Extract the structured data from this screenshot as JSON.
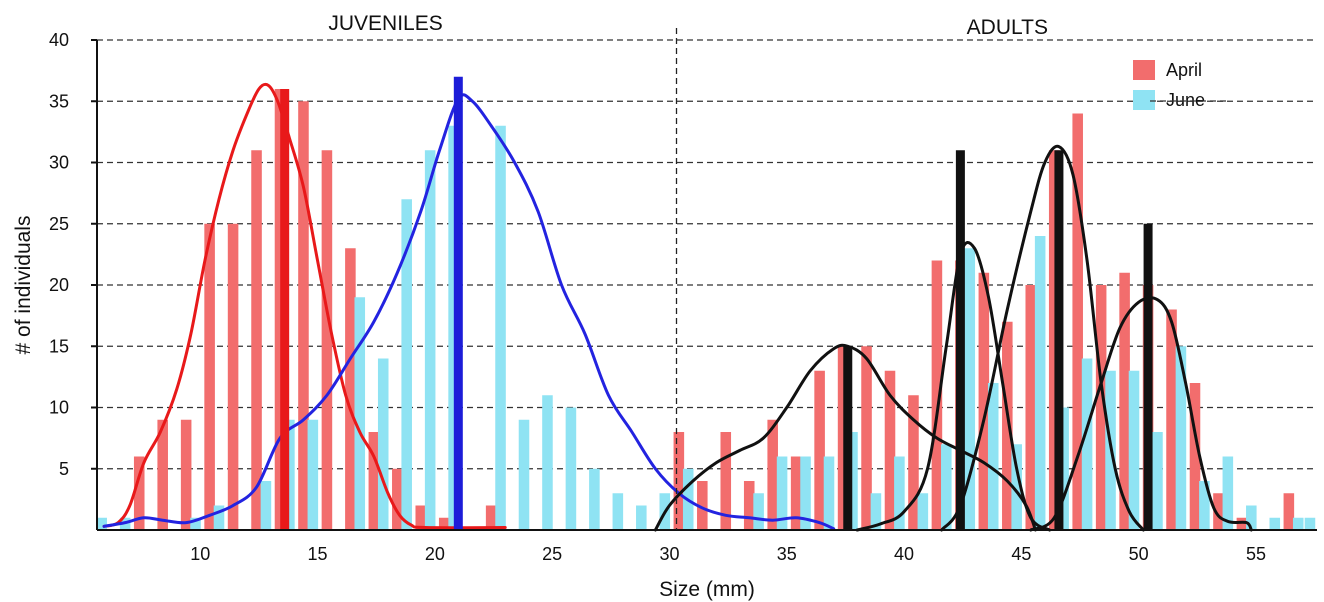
{
  "chart_data": {
    "type": "bar",
    "xlabel": "Size (mm)",
    "ylabel": "# of individuals",
    "xlim": [
      5.6,
      57.6
    ],
    "ylim": [
      0,
      40
    ],
    "xticks": [
      10,
      15,
      20,
      25,
      30,
      35,
      40,
      45,
      50,
      55
    ],
    "yticks": [
      5,
      10,
      15,
      20,
      25,
      30,
      35,
      40
    ],
    "grid": "horizontal-dashed",
    "legend": "top-right",
    "sections": [
      {
        "label": "JUVENILES",
        "x": 17.9
      },
      {
        "label": "ADULTS",
        "x": 44.4
      }
    ],
    "divider_x": 30.3,
    "bar_width": 0.45,
    "series": [
      {
        "name": "April",
        "color": "#f26d6d",
        "bars": [
          [
            7.4,
            6
          ],
          [
            8.4,
            9
          ],
          [
            9.4,
            9
          ],
          [
            10.4,
            25
          ],
          [
            11.4,
            25
          ],
          [
            12.4,
            31
          ],
          [
            13.4,
            36
          ],
          [
            14.4,
            35
          ],
          [
            15.4,
            31
          ],
          [
            16.4,
            23
          ],
          [
            17.4,
            8
          ],
          [
            18.4,
            5
          ],
          [
            19.4,
            2
          ],
          [
            20.4,
            1
          ],
          [
            22.4,
            2
          ],
          [
            30.4,
            8
          ],
          [
            31.4,
            4
          ],
          [
            32.4,
            8
          ],
          [
            33.4,
            4
          ],
          [
            34.4,
            9
          ],
          [
            35.4,
            6
          ],
          [
            36.4,
            13
          ],
          [
            37.4,
            15
          ],
          [
            38.4,
            15
          ],
          [
            39.4,
            13
          ],
          [
            40.4,
            11
          ],
          [
            41.4,
            22
          ],
          [
            42.4,
            22
          ],
          [
            43.4,
            21
          ],
          [
            44.4,
            17
          ],
          [
            45.4,
            20
          ],
          [
            46.4,
            31
          ],
          [
            47.4,
            34
          ],
          [
            48.4,
            20
          ],
          [
            49.4,
            21
          ],
          [
            50.4,
            20
          ],
          [
            51.4,
            18
          ],
          [
            52.4,
            12
          ],
          [
            53.4,
            3
          ],
          [
            54.4,
            1
          ],
          [
            56.4,
            3
          ]
        ]
      },
      {
        "name": "June",
        "color": "#8fe3f3",
        "bars": [
          [
            5.8,
            1
          ],
          [
            6.8,
            1
          ],
          [
            9.8,
            1
          ],
          [
            10.8,
            2
          ],
          [
            12.8,
            4
          ],
          [
            13.8,
            9
          ],
          [
            14.8,
            9
          ],
          [
            16.8,
            19
          ],
          [
            17.8,
            14
          ],
          [
            18.8,
            27
          ],
          [
            19.8,
            31
          ],
          [
            20.8,
            33
          ],
          [
            22.8,
            33
          ],
          [
            23.8,
            9
          ],
          [
            24.8,
            11
          ],
          [
            25.8,
            10
          ],
          [
            26.8,
            5
          ],
          [
            27.8,
            3
          ],
          [
            28.8,
            2
          ],
          [
            29.8,
            3
          ],
          [
            30.8,
            5
          ],
          [
            33.8,
            3
          ],
          [
            34.8,
            6
          ],
          [
            35.8,
            6
          ],
          [
            36.8,
            6
          ],
          [
            37.8,
            8
          ],
          [
            38.8,
            3
          ],
          [
            39.8,
            6
          ],
          [
            40.8,
            3
          ],
          [
            41.8,
            7
          ],
          [
            42.8,
            23
          ],
          [
            43.8,
            12
          ],
          [
            44.8,
            7
          ],
          [
            45.8,
            24
          ],
          [
            46.8,
            10
          ],
          [
            47.8,
            14
          ],
          [
            48.8,
            13
          ],
          [
            49.8,
            13
          ],
          [
            50.8,
            8
          ],
          [
            51.8,
            15
          ],
          [
            52.8,
            4
          ],
          [
            53.8,
            6
          ],
          [
            54.8,
            2
          ],
          [
            55.8,
            1
          ],
          [
            56.8,
            1
          ],
          [
            57.3,
            1
          ]
        ]
      }
    ],
    "curves": [
      {
        "color": "#e8191a",
        "points": [
          [
            5.9,
            0.3
          ],
          [
            6.5,
            0.6
          ],
          [
            7.0,
            2
          ],
          [
            7.6,
            5.5
          ],
          [
            8.3,
            8
          ],
          [
            9.0,
            11.5
          ],
          [
            9.6,
            16
          ],
          [
            10.2,
            22
          ],
          [
            10.8,
            27
          ],
          [
            11.4,
            31
          ],
          [
            12.0,
            34
          ],
          [
            12.5,
            36
          ],
          [
            12.9,
            36.3
          ],
          [
            13.3,
            35
          ],
          [
            13.8,
            32
          ],
          [
            14.4,
            28
          ],
          [
            15.0,
            22
          ],
          [
            15.6,
            16
          ],
          [
            16.2,
            11
          ],
          [
            16.8,
            8
          ],
          [
            17.4,
            6
          ],
          [
            18.0,
            3
          ],
          [
            18.5,
            1.2
          ],
          [
            19.0,
            0.4
          ],
          [
            19.6,
            0.2
          ],
          [
            23.0,
            0.2
          ]
        ]
      },
      {
        "color": "#2323e0",
        "points": [
          [
            5.9,
            0.3
          ],
          [
            6.8,
            0.6
          ],
          [
            7.6,
            1
          ],
          [
            8.4,
            0.8
          ],
          [
            9.4,
            0.6
          ],
          [
            10.4,
            1.2
          ],
          [
            11.4,
            2
          ],
          [
            12.4,
            3.5
          ],
          [
            13.4,
            7.5
          ],
          [
            14.4,
            9
          ],
          [
            15.4,
            11
          ],
          [
            16.4,
            14
          ],
          [
            17.4,
            17
          ],
          [
            18.4,
            21
          ],
          [
            19.4,
            26
          ],
          [
            20.2,
            31
          ],
          [
            21.0,
            35.2
          ],
          [
            21.6,
            35
          ],
          [
            22.4,
            33
          ],
          [
            23.4,
            30
          ],
          [
            24.4,
            26
          ],
          [
            25.4,
            20
          ],
          [
            26.4,
            16
          ],
          [
            27.4,
            11
          ],
          [
            28.4,
            8
          ],
          [
            29.4,
            5
          ],
          [
            30.4,
            3
          ],
          [
            31.4,
            1.8
          ],
          [
            32.4,
            1.2
          ],
          [
            33.4,
            1
          ],
          [
            34.4,
            0.8
          ],
          [
            35.4,
            1
          ],
          [
            36.4,
            0.6
          ],
          [
            37.0,
            0.1
          ]
        ]
      },
      {
        "color": "#111111",
        "points": [
          [
            29.4,
            0
          ],
          [
            30.0,
            2
          ],
          [
            31.0,
            4
          ],
          [
            32.0,
            5.5
          ],
          [
            33.0,
            6.5
          ],
          [
            34.0,
            7.5
          ],
          [
            35.0,
            10
          ],
          [
            36.0,
            13
          ],
          [
            37.0,
            14.8
          ],
          [
            37.6,
            15
          ],
          [
            38.4,
            14
          ],
          [
            39.4,
            11
          ],
          [
            40.4,
            9
          ],
          [
            41.4,
            7.5
          ],
          [
            42.4,
            6.5
          ],
          [
            43.4,
            5.5
          ],
          [
            44.4,
            4
          ],
          [
            45.2,
            2
          ],
          [
            45.6,
            0
          ]
        ]
      },
      {
        "color": "#111111",
        "points": [
          [
            38.0,
            0
          ],
          [
            39.0,
            0.5
          ],
          [
            40.0,
            1.5
          ],
          [
            41.0,
            5
          ],
          [
            41.8,
            15
          ],
          [
            42.4,
            22.5
          ],
          [
            43.0,
            23
          ],
          [
            43.6,
            19
          ],
          [
            44.2,
            12
          ],
          [
            44.8,
            5
          ],
          [
            45.4,
            1
          ],
          [
            46.2,
            0
          ]
        ]
      },
      {
        "color": "#111111",
        "points": [
          [
            41.6,
            0
          ],
          [
            42.4,
            2
          ],
          [
            43.4,
            9
          ],
          [
            44.4,
            18
          ],
          [
            45.4,
            26
          ],
          [
            46.0,
            30
          ],
          [
            46.6,
            31.3
          ],
          [
            47.2,
            29
          ],
          [
            47.8,
            22
          ],
          [
            48.4,
            12
          ],
          [
            49.0,
            5
          ],
          [
            49.6,
            1.5
          ],
          [
            50.2,
            0
          ]
        ]
      },
      {
        "color": "#111111",
        "points": [
          [
            45.4,
            0
          ],
          [
            46.4,
            1
          ],
          [
            47.4,
            6
          ],
          [
            48.4,
            12
          ],
          [
            49.2,
            16.5
          ],
          [
            50.0,
            18.6
          ],
          [
            50.8,
            18.8
          ],
          [
            51.4,
            17
          ],
          [
            52.0,
            12
          ],
          [
            52.6,
            6
          ],
          [
            53.2,
            1.8
          ],
          [
            53.8,
            0.7
          ],
          [
            54.6,
            0.6
          ],
          [
            54.8,
            0
          ]
        ]
      }
    ],
    "marker_bars": [
      {
        "x": 13.6,
        "value": 36,
        "color": "#e8191a"
      },
      {
        "x": 21.0,
        "value": 37,
        "color": "#1d1dd8"
      },
      {
        "x": 37.6,
        "value": 15,
        "color": "#111111"
      },
      {
        "x": 42.4,
        "value": 31,
        "color": "#111111"
      },
      {
        "x": 46.6,
        "value": 31,
        "color": "#111111"
      },
      {
        "x": 50.4,
        "value": 25,
        "color": "#111111"
      }
    ]
  }
}
